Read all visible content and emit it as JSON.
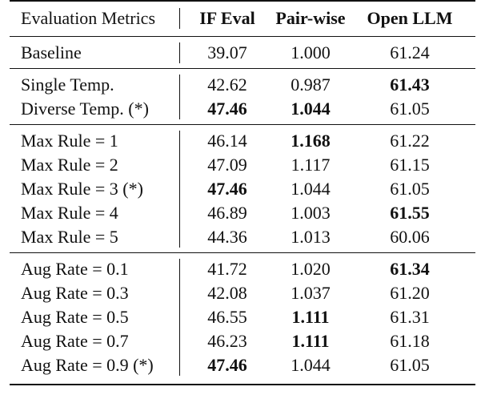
{
  "table": {
    "headers": [
      "Evaluation Metrics",
      "IF Eval",
      "Pair-wise",
      "Open LLM"
    ],
    "groups": [
      {
        "rows": [
          {
            "label": "Baseline",
            "values": [
              "39.07",
              "1.000",
              "61.24"
            ],
            "bold": [
              false,
              false,
              false
            ]
          }
        ]
      },
      {
        "rows": [
          {
            "label": "Single Temp.",
            "values": [
              "42.62",
              "0.987",
              "61.43"
            ],
            "bold": [
              false,
              false,
              true
            ]
          },
          {
            "label": "Diverse Temp. (*)",
            "values": [
              "47.46",
              "1.044",
              "61.05"
            ],
            "bold": [
              true,
              true,
              false
            ]
          }
        ]
      },
      {
        "rows": [
          {
            "label": "Max Rule = 1",
            "values": [
              "46.14",
              "1.168",
              "61.22"
            ],
            "bold": [
              false,
              true,
              false
            ]
          },
          {
            "label": "Max Rule = 2",
            "values": [
              "47.09",
              "1.117",
              "61.15"
            ],
            "bold": [
              false,
              false,
              false
            ]
          },
          {
            "label": "Max Rule = 3 (*)",
            "values": [
              "47.46",
              "1.044",
              "61.05"
            ],
            "bold": [
              true,
              false,
              false
            ]
          },
          {
            "label": "Max Rule = 4",
            "values": [
              "46.89",
              "1.003",
              "61.55"
            ],
            "bold": [
              false,
              false,
              true
            ]
          },
          {
            "label": "Max Rule = 5",
            "values": [
              "44.36",
              "1.013",
              "60.06"
            ],
            "bold": [
              false,
              false,
              false
            ]
          }
        ]
      },
      {
        "rows": [
          {
            "label": "Aug Rate = 0.1",
            "values": [
              "41.72",
              "1.020",
              "61.34"
            ],
            "bold": [
              false,
              false,
              true
            ]
          },
          {
            "label": "Aug Rate = 0.3",
            "values": [
              "42.08",
              "1.037",
              "61.20"
            ],
            "bold": [
              false,
              false,
              false
            ]
          },
          {
            "label": "Aug Rate = 0.5",
            "values": [
              "46.55",
              "1.111",
              "61.31"
            ],
            "bold": [
              false,
              true,
              false
            ]
          },
          {
            "label": "Aug Rate = 0.7",
            "values": [
              "46.23",
              "1.111",
              "61.18"
            ],
            "bold": [
              false,
              true,
              false
            ]
          },
          {
            "label": "Aug Rate = 0.9 (*)",
            "values": [
              "47.46",
              "1.044",
              "61.05"
            ],
            "bold": [
              true,
              false,
              false
            ]
          }
        ]
      }
    ]
  }
}
